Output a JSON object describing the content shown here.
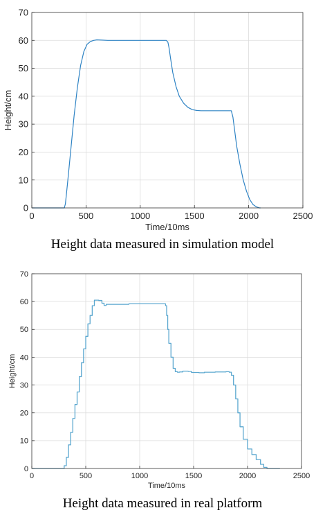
{
  "chart_data": [
    {
      "type": "line",
      "title": "",
      "xlabel": "Time/10ms",
      "ylabel": "Height/cm",
      "xlim": [
        0,
        2500
      ],
      "ylim": [
        0,
        70
      ],
      "xticks": [
        0,
        500,
        1000,
        1500,
        2000,
        2500
      ],
      "yticks": [
        0,
        10,
        20,
        30,
        40,
        50,
        60,
        70
      ],
      "grid": true,
      "color": "#2e83c4",
      "caption": "Height data measured in simulation model",
      "series": [
        {
          "x": [
            0,
            300,
            310,
            330,
            360,
            390,
            420,
            450,
            480,
            510,
            540,
            570,
            600,
            650,
            700,
            1000,
            1240,
            1255,
            1265,
            1280,
            1300,
            1330,
            1360,
            1400,
            1440,
            1480,
            1520,
            1560,
            1600,
            1700,
            1840,
            1855,
            1870,
            1890,
            1920,
            1950,
            1980,
            2010,
            2040,
            2070,
            2100,
            2110
          ],
          "y": [
            0,
            0,
            1.5,
            9,
            21,
            33,
            43,
            51,
            56,
            58.6,
            59.6,
            60,
            60.2,
            60.1,
            60,
            60,
            60,
            59.4,
            57.5,
            53.5,
            48.5,
            43.5,
            40,
            37.5,
            36,
            35.2,
            34.9,
            34.8,
            34.8,
            34.8,
            34.8,
            32.5,
            28,
            22,
            15.5,
            10,
            6,
            3,
            1.2,
            0.4,
            0,
            0
          ]
        }
      ]
    },
    {
      "type": "line",
      "title": "",
      "xlabel": "Time/10ms",
      "ylabel": "Height/cm",
      "xlim": [
        0,
        2500
      ],
      "ylim": [
        0,
        70
      ],
      "xticks": [
        0,
        500,
        1000,
        1500,
        2000,
        2500
      ],
      "yticks": [
        0,
        10,
        20,
        30,
        40,
        50,
        60,
        70
      ],
      "grid": true,
      "color": "#5aa7cf",
      "caption": "Height data measured in real platform",
      "series": [
        {
          "x": [
            0,
            290,
            300,
            320,
            340,
            360,
            380,
            400,
            420,
            440,
            460,
            480,
            500,
            520,
            540,
            560,
            580,
            600,
            620,
            650,
            670,
            690,
            720,
            800,
            900,
            1000,
            1100,
            1200,
            1220,
            1240,
            1250,
            1260,
            1270,
            1290,
            1310,
            1330,
            1350,
            1370,
            1400,
            1450,
            1480,
            1500,
            1550,
            1600,
            1700,
            1800,
            1830,
            1850,
            1870,
            1890,
            1910,
            1930,
            1960,
            2000,
            2040,
            2080,
            2120,
            2150,
            2180,
            2200,
            2260,
            2300
          ],
          "y": [
            0,
            0,
            1,
            4,
            8.5,
            13,
            18,
            23,
            27.5,
            33,
            38,
            43,
            47.5,
            52,
            55,
            58.5,
            60.5,
            60.5,
            60.4,
            59.4,
            58.6,
            59,
            59,
            59,
            59.2,
            59.2,
            59.2,
            59.2,
            59.2,
            58.5,
            55,
            50,
            45,
            40,
            36,
            34.8,
            34.6,
            34.7,
            35,
            34.9,
            34.5,
            34.5,
            34.4,
            34.6,
            34.7,
            34.8,
            34.6,
            33.5,
            30,
            25,
            20,
            15,
            10.5,
            7,
            5,
            3.2,
            1.5,
            0.4,
            0,
            0,
            0,
            0
          ]
        }
      ]
    }
  ]
}
